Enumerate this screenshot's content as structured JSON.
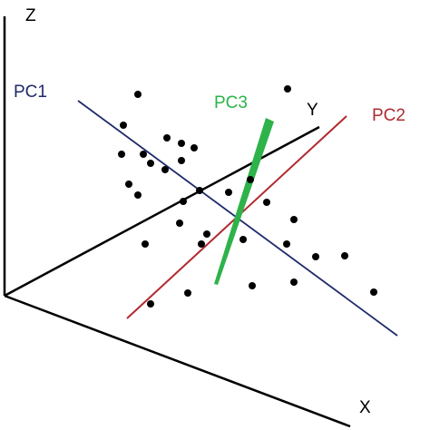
{
  "axes": {
    "z_label": "Z",
    "y_label": "Y",
    "x_label": "X",
    "color": "#000000"
  },
  "components": {
    "pc1": {
      "label": "PC1",
      "color": "#1f2a6b"
    },
    "pc2": {
      "label": "PC2",
      "color": "#b02a2f"
    },
    "pc3": {
      "label": "PC3",
      "color": "#2db34a"
    }
  },
  "points_color": "#000000"
}
